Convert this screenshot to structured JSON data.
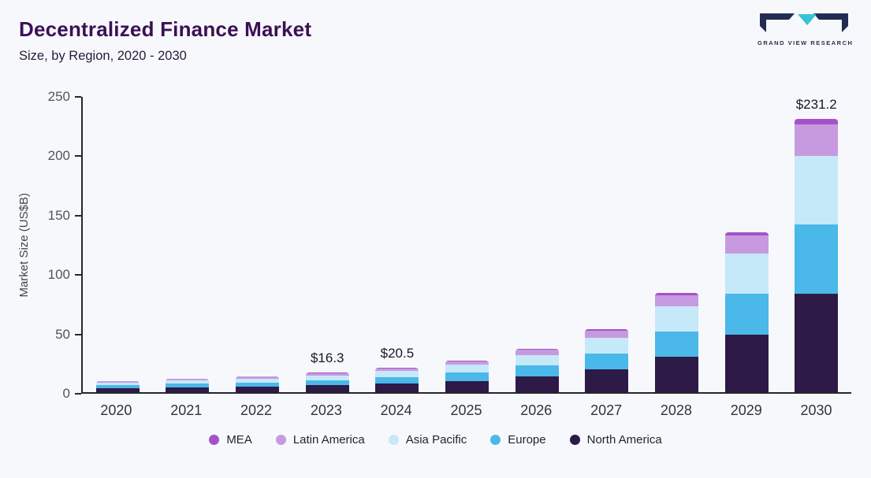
{
  "header": {
    "title": "Decentralized Finance Market",
    "subtitle": "Size, by Region, 2020 - 2030",
    "logo_text": "GRAND VIEW RESEARCH"
  },
  "chart_data": {
    "type": "bar",
    "stacked": true,
    "title": "Decentralized Finance Market Size, by Region, 2020 - 2030",
    "xlabel": "",
    "ylabel": "Market Size (US$B)",
    "ylim": [
      0,
      250
    ],
    "yticks": [
      0,
      50,
      100,
      150,
      200,
      250
    ],
    "grid": false,
    "legend_position": "bottom",
    "categories": [
      "2020",
      "2021",
      "2022",
      "2023",
      "2024",
      "2025",
      "2026",
      "2027",
      "2028",
      "2029",
      "2030"
    ],
    "series": [
      {
        "name": "North America",
        "color": "#2d1a47",
        "values": [
          3.4,
          4.1,
          4.8,
          5.9,
          7.4,
          9.5,
          13,
          19,
          30,
          48.5,
          83
        ]
      },
      {
        "name": "Europe",
        "color": "#4ab8e8",
        "values": [
          2.4,
          2.9,
          3.4,
          4.2,
          5.2,
          6.8,
          9.5,
          13.5,
          21,
          34.5,
          59
        ]
      },
      {
        "name": "Asia Pacific",
        "color": "#c6e9f9",
        "values": [
          2.3,
          2.9,
          3.4,
          4.1,
          5.2,
          6.7,
          9,
          13.5,
          21,
          34,
          58
        ]
      },
      {
        "name": "Latin America",
        "color": "#c79ae0",
        "values": [
          1.0,
          1.2,
          1.5,
          1.8,
          2.3,
          3.0,
          4.2,
          5.8,
          9.5,
          15,
          26.5
        ]
      },
      {
        "name": "MEA",
        "color": "#a552c8",
        "values": [
          0.2,
          0.2,
          0.2,
          0.3,
          0.4,
          0.5,
          0.8,
          1.2,
          2,
          3,
          4.7
        ]
      }
    ],
    "legend": [
      "MEA",
      "Latin America",
      "Asia Pacific",
      "Europe",
      "North America"
    ],
    "annotations": [
      {
        "category": "2023",
        "label": "$16.3"
      },
      {
        "category": "2024",
        "label": "$20.5"
      },
      {
        "category": "2030",
        "label": "$231.2"
      }
    ]
  }
}
